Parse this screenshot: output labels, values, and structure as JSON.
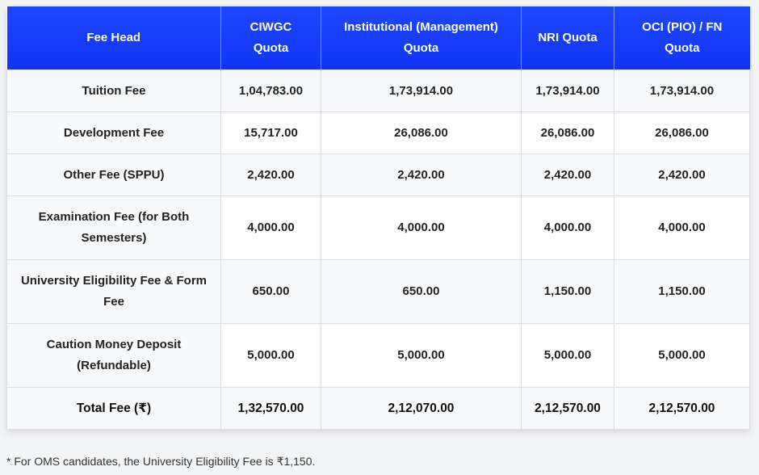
{
  "colors": {
    "header_gradient_start": "#1f46ff",
    "header_gradient_end": "#1035f5",
    "header_text": "#ffffff"
  },
  "table": {
    "columns": [
      "Fee Head",
      "CIWGC Quota",
      "Institutional (Management) Quota",
      "NRI Quota",
      "OCI (PIO) / FN Quota"
    ],
    "rows": [
      {
        "head": "Tuition Fee",
        "ciwgc": "1,04,783.00",
        "institutional": "1,73,914.00",
        "nri": "1,73,914.00",
        "oci": "1,73,914.00"
      },
      {
        "head": "Development Fee",
        "ciwgc": "15,717.00",
        "institutional": "26,086.00",
        "nri": "26,086.00",
        "oci": "26,086.00"
      },
      {
        "head": "Other Fee (SPPU)",
        "ciwgc": "2,420.00",
        "institutional": "2,420.00",
        "nri": "2,420.00",
        "oci": "2,420.00"
      },
      {
        "head": "Examination Fee (for Both Semesters)",
        "ciwgc": "4,000.00",
        "institutional": "4,000.00",
        "nri": "4,000.00",
        "oci": "4,000.00"
      },
      {
        "head": "University Eligibility Fee & Form Fee",
        "ciwgc": "650.00",
        "institutional": "650.00",
        "nri": "1,150.00",
        "oci": "1,150.00"
      },
      {
        "head": "Caution Money Deposit (Refundable)",
        "ciwgc": "5,000.00",
        "institutional": "5,000.00",
        "nri": "5,000.00",
        "oci": "5,000.00"
      },
      {
        "head": "Total Fee (₹)",
        "ciwgc": "1,32,570.00",
        "institutional": "2,12,070.00",
        "nri": "2,12,570.00",
        "oci": "2,12,570.00"
      }
    ]
  },
  "footnote": "* For OMS candidates, the University Eligibility Fee is ₹1,150."
}
